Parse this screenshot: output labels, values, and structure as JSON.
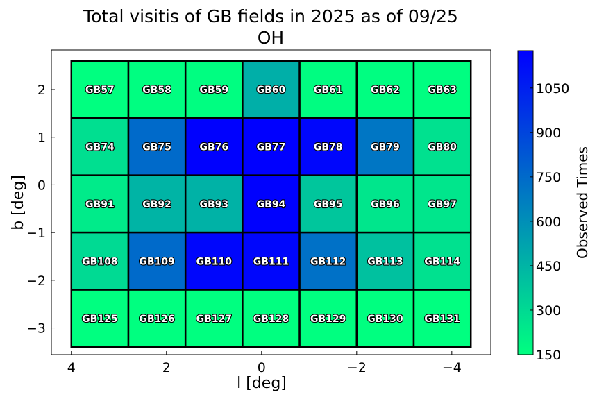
{
  "chart_data": {
    "type": "heatmap",
    "title": "Total visitis of GB fields in 2025 as of 09/25",
    "subtitle": "OH",
    "xlabel": "l [deg]",
    "ylabel": "b [deg]",
    "xlim": [
      4.42,
      -4.82
    ],
    "ylim": [
      -3.56,
      2.83
    ],
    "xticks": [
      4,
      2,
      0,
      -2,
      -4
    ],
    "xtick_labels": [
      "4",
      "2",
      "0",
      "−2",
      "−4"
    ],
    "yticks": [
      2,
      1,
      0,
      -1,
      -2,
      -3
    ],
    "ytick_labels": [
      "2",
      "1",
      "0",
      "−1",
      "−2",
      "−3"
    ],
    "cell_size_deg": 1.2,
    "l_centers": [
      3.4,
      2.2,
      1.0,
      -0.2,
      -1.4,
      -2.6,
      -3.8
    ],
    "b_centers": [
      2.0,
      0.8,
      -0.4,
      -1.6,
      -2.8
    ],
    "fields": [
      [
        "GB57",
        "GB58",
        "GB59",
        "GB60",
        "GB61",
        "GB62",
        "GB63"
      ],
      [
        "GB74",
        "GB75",
        "GB76",
        "GB77",
        "GB78",
        "GB79",
        "GB80"
      ],
      [
        "GB91",
        "GB92",
        "GB93",
        "GB94",
        "GB95",
        "GB96",
        "GB97"
      ],
      [
        "GB108",
        "GB109",
        "GB110",
        "GB111",
        "GB112",
        "GB113",
        "GB114"
      ],
      [
        "GB125",
        "GB126",
        "GB127",
        "GB128",
        "GB129",
        "GB130",
        "GB131"
      ]
    ],
    "values": [
      [
        150,
        155,
        155,
        470,
        160,
        155,
        155
      ],
      [
        280,
        750,
        1170,
        1176,
        1150,
        700,
        270
      ],
      [
        230,
        450,
        460,
        1170,
        380,
        250,
        250
      ],
      [
        300,
        750,
        1150,
        1150,
        720,
        400,
        270
      ],
      [
        150,
        150,
        150,
        150,
        150,
        150,
        150
      ]
    ],
    "colorbar": {
      "label": "Observed Times",
      "range": [
        150,
        1176
      ],
      "ticks": [
        150,
        300,
        450,
        600,
        750,
        900,
        1050
      ],
      "tick_labels": [
        "150",
        "300",
        "450",
        "600",
        "750",
        "900",
        "1050"
      ],
      "colormap": "winter_r",
      "low_color": "#00ff80",
      "high_color": "#0000ff"
    },
    "grid": false,
    "legend": "none"
  }
}
